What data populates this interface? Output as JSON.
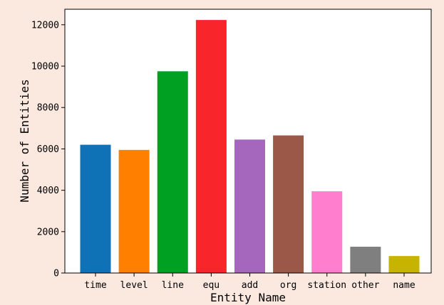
{
  "chart_data": {
    "type": "bar",
    "xlabel": "Entity Name",
    "ylabel": "Number of Entities",
    "categories": [
      "time",
      "level",
      "line",
      "equ",
      "add",
      "org",
      "station",
      "other",
      "name"
    ],
    "values": [
      6200,
      5950,
      9750,
      12230,
      6450,
      6650,
      3950,
      1270,
      820
    ],
    "colors": [
      "#1f77b4",
      "#ff7f0e",
      "#2ca02c",
      "#d62728",
      "#9467bd",
      "#8c564b",
      "#e377c2",
      "#7f7f7f",
      "#bcbd22"
    ],
    "bar_colors_render": [
      "#0f72b6",
      "#ff7f00",
      "#00a023",
      "#f8252a",
      "#a467bd",
      "#9b5748",
      "#ff7fce",
      "#7f7f7f",
      "#c6b400"
    ],
    "yticks": [
      0,
      2000,
      4000,
      6000,
      8000,
      10000,
      12000
    ],
    "ylim": [
      0,
      12750
    ],
    "grid": false
  }
}
